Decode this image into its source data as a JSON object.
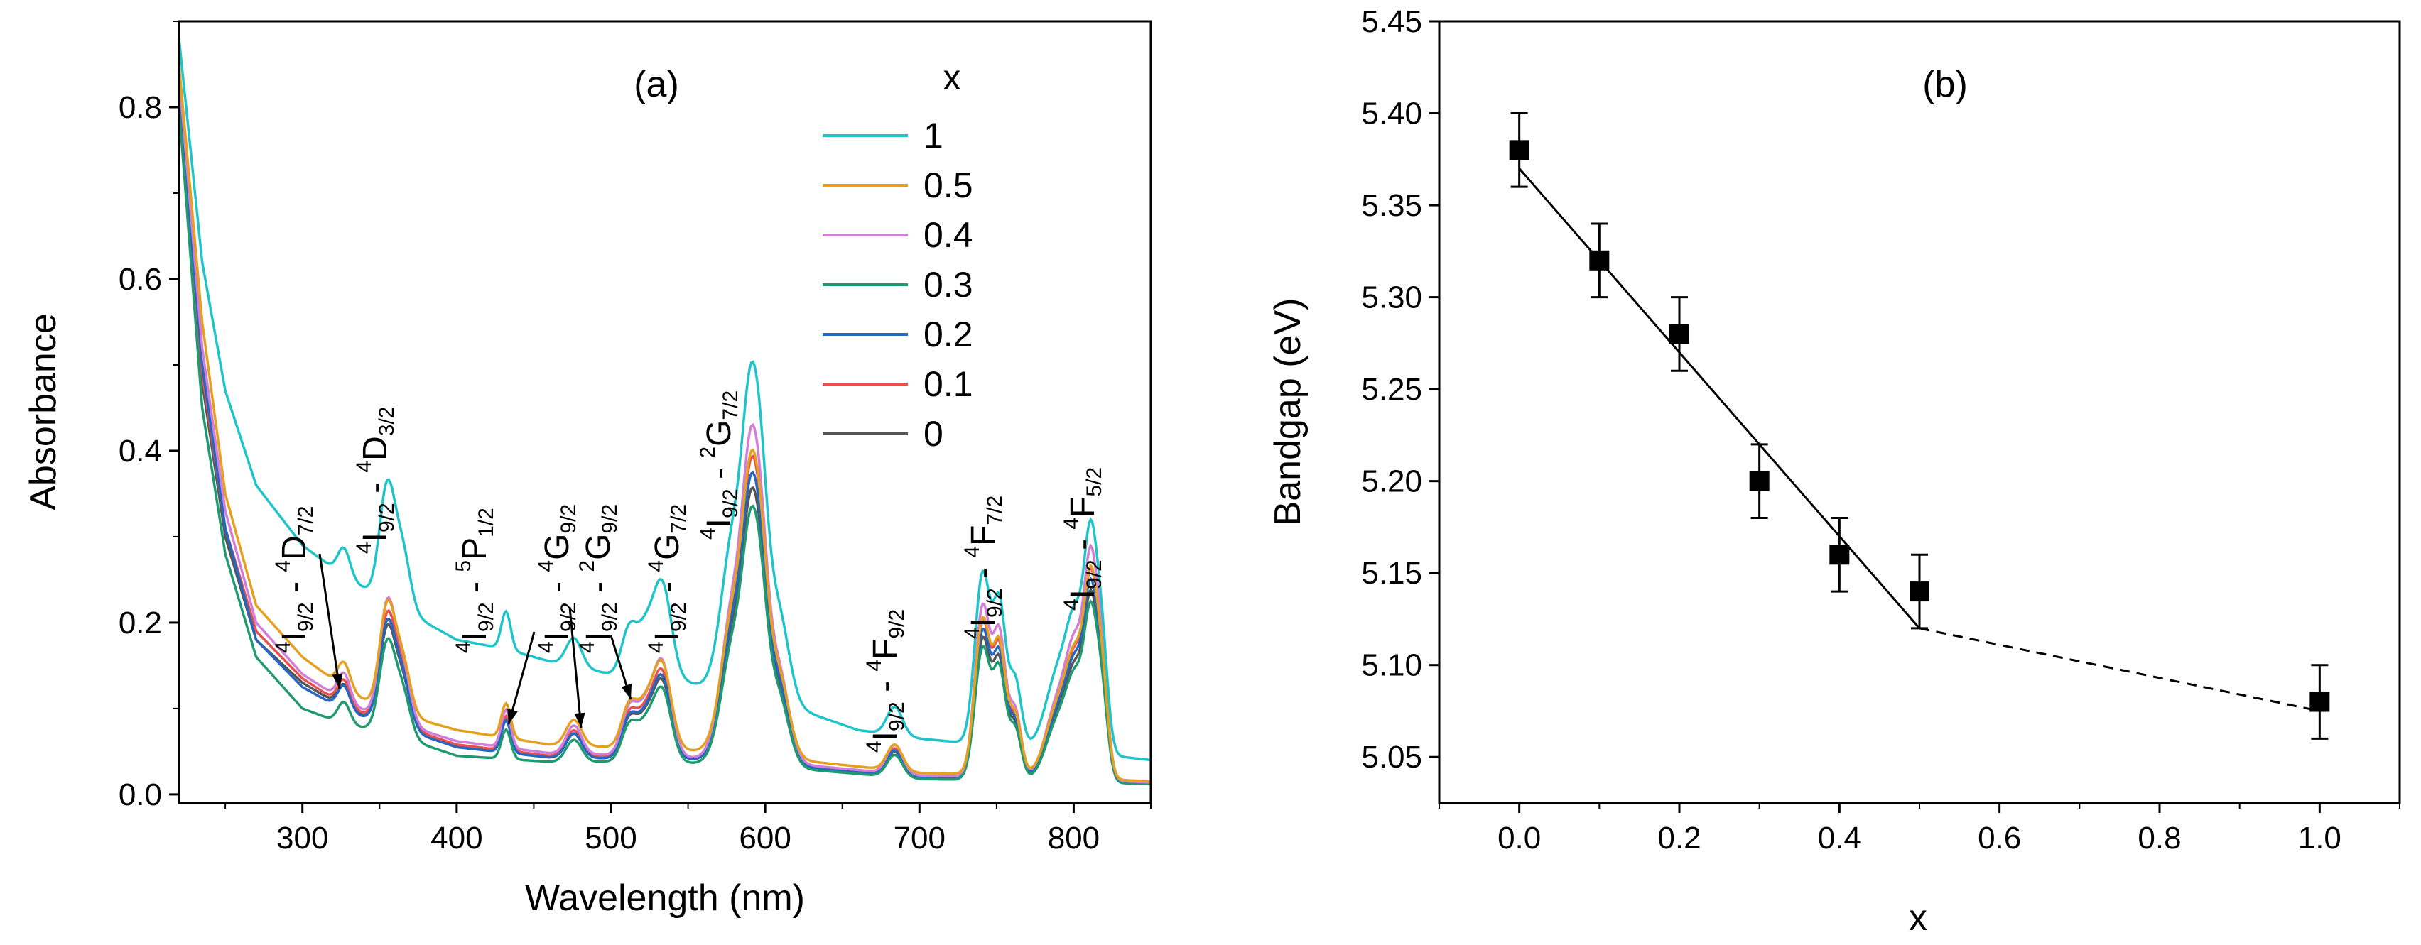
{
  "chart_data": [
    {
      "type": "line",
      "panel_label": "(a)",
      "xlabel": "Wavelength (nm)",
      "ylabel": "Absorbance",
      "xlim": [
        220,
        850
      ],
      "ylim": [
        -0.01,
        0.9
      ],
      "xticks": [
        300,
        400,
        500,
        600,
        700,
        800
      ],
      "yticks": [
        0.0,
        0.2,
        0.4,
        0.6,
        0.8
      ],
      "xtick_labels": [
        "300",
        "400",
        "500",
        "600",
        "700",
        "800"
      ],
      "ytick_labels": [
        "0.0",
        "0.2",
        "0.4",
        "0.6",
        "0.8"
      ],
      "legend": {
        "title": "x",
        "placement": "top-right"
      },
      "series": [
        {
          "name": "1",
          "color": "#1FC4C8",
          "baseline": [
            [
              220,
              0.88
            ],
            [
              235,
              0.62
            ],
            [
              250,
              0.47
            ],
            [
              270,
              0.36
            ],
            [
              300,
              0.29
            ],
            [
              330,
              0.25
            ],
            [
              350,
              0.23
            ],
            [
              400,
              0.18
            ],
            [
              430,
              0.17
            ],
            [
              460,
              0.155
            ],
            [
              500,
              0.14
            ],
            [
              540,
              0.135
            ],
            [
              560,
              0.125
            ],
            [
              620,
              0.1
            ],
            [
              660,
              0.075
            ],
            [
              700,
              0.065
            ],
            [
              730,
              0.06
            ],
            [
              770,
              0.055
            ],
            [
              800,
              0.05
            ],
            [
              850,
              0.04
            ]
          ]
        },
        {
          "name": "0.5",
          "color": "#E5A020",
          "baseline": [
            [
              220,
              0.85
            ],
            [
              235,
              0.55
            ],
            [
              250,
              0.35
            ],
            [
              270,
              0.22
            ],
            [
              300,
              0.16
            ],
            [
              330,
              0.12
            ],
            [
              350,
              0.1
            ],
            [
              400,
              0.075
            ],
            [
              460,
              0.058
            ],
            [
              500,
              0.055
            ],
            [
              560,
              0.05
            ],
            [
              620,
              0.04
            ],
            [
              700,
              0.025
            ],
            [
              800,
              0.02
            ],
            [
              850,
              0.015
            ]
          ]
        },
        {
          "name": "0.4",
          "color": "#D07ED8",
          "baseline": [
            [
              220,
              0.84
            ],
            [
              235,
              0.52
            ],
            [
              250,
              0.33
            ],
            [
              270,
              0.2
            ],
            [
              300,
              0.14
            ],
            [
              330,
              0.105
            ],
            [
              350,
              0.09
            ],
            [
              400,
              0.062
            ],
            [
              460,
              0.048
            ],
            [
              500,
              0.046
            ],
            [
              560,
              0.042
            ],
            [
              620,
              0.035
            ],
            [
              700,
              0.022
            ],
            [
              800,
              0.018
            ],
            [
              850,
              0.014
            ]
          ]
        },
        {
          "name": "0.3",
          "color": "#1F9A70",
          "baseline": [
            [
              220,
              0.8
            ],
            [
              235,
              0.45
            ],
            [
              250,
              0.28
            ],
            [
              270,
              0.16
            ],
            [
              300,
              0.1
            ],
            [
              330,
              0.08
            ],
            [
              350,
              0.075
            ],
            [
              400,
              0.045
            ],
            [
              460,
              0.038
            ],
            [
              500,
              0.038
            ],
            [
              560,
              0.036
            ],
            [
              620,
              0.03
            ],
            [
              700,
              0.018
            ],
            [
              800,
              0.015
            ],
            [
              850,
              0.012
            ]
          ]
        },
        {
          "name": "0.2",
          "color": "#2466C0",
          "baseline": [
            [
              220,
              0.82
            ],
            [
              235,
              0.5
            ],
            [
              250,
              0.31
            ],
            [
              270,
              0.18
            ],
            [
              300,
              0.125
            ],
            [
              330,
              0.095
            ],
            [
              350,
              0.085
            ],
            [
              400,
              0.055
            ],
            [
              460,
              0.043
            ],
            [
              500,
              0.042
            ],
            [
              560,
              0.04
            ],
            [
              620,
              0.033
            ],
            [
              700,
              0.02
            ],
            [
              800,
              0.017
            ],
            [
              850,
              0.013
            ]
          ]
        },
        {
          "name": "0.1",
          "color": "#E85050",
          "baseline": [
            [
              220,
              0.81
            ],
            [
              235,
              0.49
            ],
            [
              250,
              0.31
            ],
            [
              270,
              0.19
            ],
            [
              300,
              0.135
            ],
            [
              330,
              0.1
            ],
            [
              350,
              0.088
            ],
            [
              400,
              0.058
            ],
            [
              460,
              0.045
            ],
            [
              500,
              0.044
            ],
            [
              560,
              0.041
            ],
            [
              620,
              0.034
            ],
            [
              700,
              0.021
            ],
            [
              800,
              0.017
            ],
            [
              850,
              0.013
            ]
          ]
        },
        {
          "name": "0",
          "color": "#555555",
          "baseline": [
            [
              220,
              0.8
            ],
            [
              235,
              0.48
            ],
            [
              250,
              0.3
            ],
            [
              270,
              0.18
            ],
            [
              300,
              0.13
            ],
            [
              330,
              0.098
            ],
            [
              350,
              0.085
            ],
            [
              400,
              0.056
            ],
            [
              460,
              0.044
            ],
            [
              500,
              0.043
            ],
            [
              560,
              0.04
            ],
            [
              620,
              0.033
            ],
            [
              700,
              0.02
            ],
            [
              800,
              0.016
            ],
            [
              850,
              0.012
            ]
          ]
        }
      ],
      "peaks": [
        [
          327,
          0.03,
          4
        ],
        [
          355,
          0.12,
          5
        ],
        [
          365,
          0.06,
          5
        ],
        [
          432,
          0.04,
          3
        ],
        [
          476,
          0.03,
          5
        ],
        [
          512,
          0.05,
          5
        ],
        [
          522,
          0.04,
          5
        ],
        [
          533,
          0.1,
          6
        ],
        [
          580,
          0.17,
          8
        ],
        [
          590,
          0.2,
          5
        ],
        [
          597,
          0.18,
          5
        ],
        [
          608,
          0.1,
          7
        ],
        [
          684,
          0.03,
          5
        ],
        [
          741,
          0.18,
          5
        ],
        [
          752,
          0.14,
          4
        ],
        [
          762,
          0.07,
          4
        ],
        [
          790,
          0.08,
          8
        ],
        [
          802,
          0.12,
          6
        ],
        [
          811,
          0.18,
          4
        ],
        [
          818,
          0.12,
          4
        ]
      ],
      "annotations": [
        {
          "base": "I",
          "pre_sup": "4",
          "sub": "9/2",
          "sep": " - ",
          "base2": "D",
          "pre_sup2": "4",
          "sub2": "7/2"
        },
        {
          "base": "I",
          "pre_sup": "4",
          "sub": "9/2",
          "sep": " - ",
          "base2": "D",
          "pre_sup2": "4",
          "sub2": "3/2"
        },
        {
          "base": "I",
          "pre_sup": "4",
          "sub": "9/2",
          "sep": " - ",
          "base2": "P",
          "pre_sup2": "5",
          "sub2": "1/2"
        },
        {
          "base": "I",
          "pre_sup": "4",
          "sub": "9/2",
          "sep": " - ",
          "base2": "G",
          "pre_sup2": "4",
          "sub2": "9/2"
        },
        {
          "base": "I",
          "pre_sup": "4",
          "sub": "9/2",
          "sep": " - ",
          "base2": "G",
          "pre_sup2": "2",
          "sub2": "9/2"
        },
        {
          "base": "I",
          "pre_sup": "4",
          "sub": "9/2",
          "sep": " - ",
          "base2": "G",
          "pre_sup2": "4",
          "sub2": "7/2"
        },
        {
          "base": "I",
          "pre_sup": "4",
          "sub": "9/2",
          "sep": " - ",
          "base2": "G",
          "pre_sup2": "2",
          "sub2": "7/2"
        },
        {
          "base": "I",
          "pre_sup": "4",
          "sub": "9/2",
          "sep": " - ",
          "base2": "F",
          "pre_sup2": "4",
          "sub2": "9/2"
        },
        {
          "base": "I",
          "pre_sup": "4",
          "sub": "9/2",
          "sep": " - ",
          "base2": "F",
          "pre_sup2": "4",
          "sub2": "7/2"
        },
        {
          "base": "I",
          "pre_sup": "4",
          "sub": "9/2",
          "sep": " - ",
          "base2": "F",
          "pre_sup2": "4",
          "sub2": "5/2"
        }
      ]
    },
    {
      "type": "scatter",
      "panel_label": "(b)",
      "xlabel": "x",
      "ylabel": "Bandgap (eV)",
      "xlim": [
        -0.1,
        1.1
      ],
      "ylim": [
        5.025,
        5.45
      ],
      "xticks": [
        0.0,
        0.2,
        0.4,
        0.6,
        0.8,
        1.0
      ],
      "yticks": [
        5.05,
        5.1,
        5.15,
        5.2,
        5.25,
        5.3,
        5.35,
        5.4,
        5.45
      ],
      "xtick_labels": [
        "0.0",
        "0.2",
        "0.4",
        "0.6",
        "0.8",
        "1.0"
      ],
      "ytick_labels": [
        "5.05",
        "5.10",
        "5.15",
        "5.20",
        "5.25",
        "5.30",
        "5.35",
        "5.40",
        "5.45"
      ],
      "points": [
        {
          "x": 0.0,
          "y": 5.38,
          "err": 0.02
        },
        {
          "x": 0.1,
          "y": 5.32,
          "err": 0.02
        },
        {
          "x": 0.2,
          "y": 5.28,
          "err": 0.02
        },
        {
          "x": 0.3,
          "y": 5.2,
          "err": 0.02
        },
        {
          "x": 0.4,
          "y": 5.16,
          "err": 0.02
        },
        {
          "x": 0.5,
          "y": 5.14,
          "err": 0.02
        },
        {
          "x": 1.0,
          "y": 5.08,
          "err": 0.02
        }
      ],
      "fit_line": {
        "style": "solid",
        "from": [
          0.0,
          5.37
        ],
        "to": [
          0.5,
          5.12
        ]
      },
      "extrapolation": {
        "style": "dashed",
        "from": [
          0.5,
          5.12
        ],
        "to": [
          1.0,
          5.075
        ]
      }
    }
  ]
}
